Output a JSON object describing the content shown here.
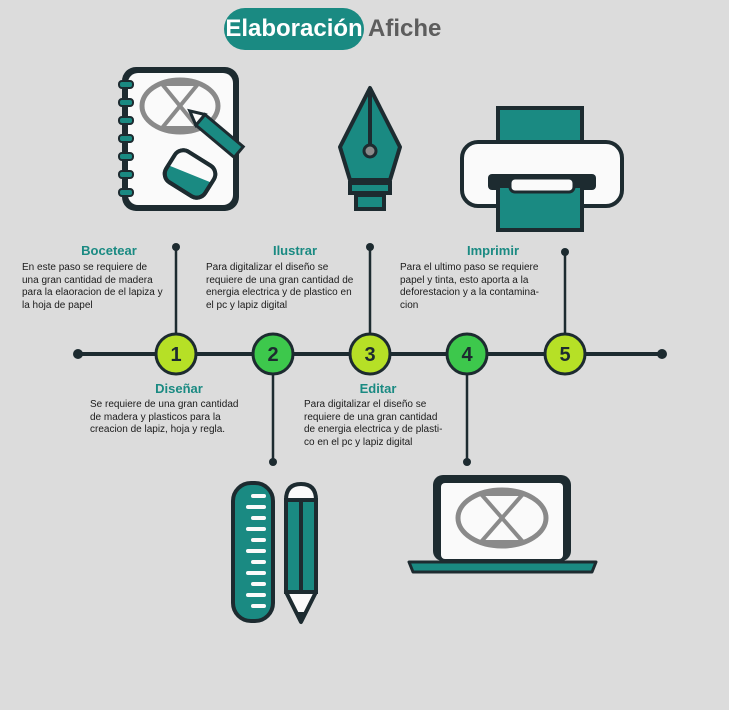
{
  "title": {
    "highlight": "Elaboración",
    "rest": "Afiche"
  },
  "colors": {
    "teal": "#1a8a82",
    "dark": "#1d2b30",
    "lime": "#b6e026",
    "green": "#3dc84c"
  },
  "steps": [
    {
      "number": "1",
      "title": "Bocetear",
      "lines": [
        "En este paso se requiere de",
        "una gran cantidad de madera",
        "para la elaoracion de el lapiza y",
        "la hoja de papel"
      ]
    },
    {
      "number": "2",
      "title": "Diseñar",
      "lines": [
        "Se requiere de una gran cantidad",
        "de madera y plasticos para la",
        "creacion de lapiz, hoja y regla."
      ]
    },
    {
      "number": "3",
      "title": "Ilustrar",
      "lines": [
        "Para digitalizar el diseño se",
        "requiere de una gran cantidad de",
        "energia electrica y de plastico en",
        "el pc y lapiz digital"
      ]
    },
    {
      "number": "4",
      "title": "Editar",
      "lines": [
        "Para digitalizar el diseño se",
        "requiere de una gran cantidad",
        "de energia electrica y de plasti-",
        "co en el pc y lapiz digital"
      ]
    },
    {
      "number": "5",
      "title": "Imprimir",
      "lines": [
        "Para el ultimo paso se requiere",
        "papel y tinta, esto aporta a la",
        "deforestacion y a la contamina-",
        "cion"
      ]
    }
  ],
  "icons": [
    "notebook-icon",
    "ruler-icon",
    "pencil-icon",
    "pen-nib-icon",
    "laptop-icon",
    "printer-icon"
  ]
}
